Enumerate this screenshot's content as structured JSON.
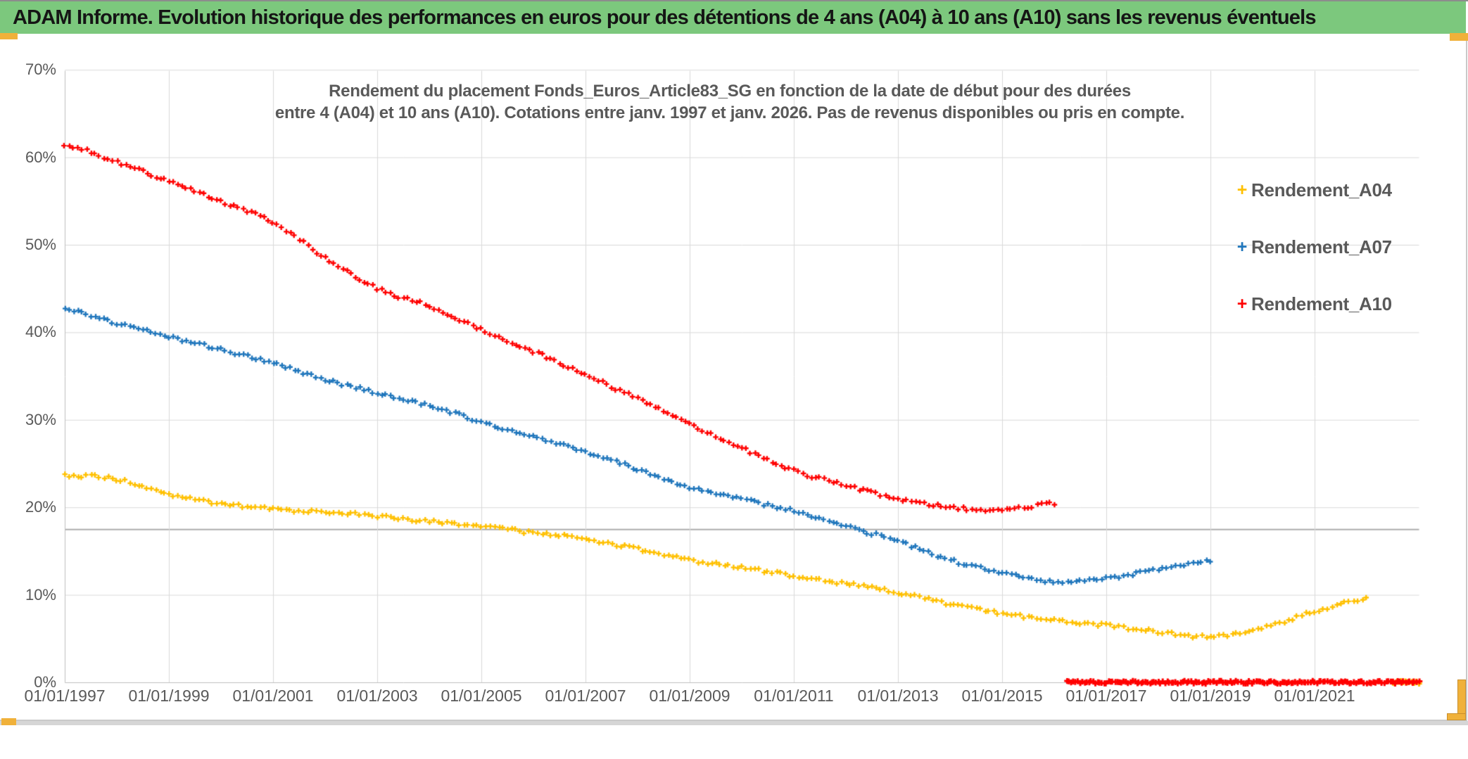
{
  "banner": {
    "title": "ADAM Informe. Evolution historique des performances en euros pour des détentions de 4 ans (A04) à 10 ans (A10) sans les revenus éventuels",
    "bg_color": "#7CC87D"
  },
  "chart": {
    "title_line1": "Rendement du placement Fonds_Euros_Article83_SG en fonction de la date de début pour des durées",
    "title_line2": "entre 4 (A04) et 10 ans (A10). Cotations entre janv. 1997 et janv. 2026. Pas de revenus disponibles ou pris en compte.",
    "text_color": "#595959",
    "gridline_color": "#D9D9D9",
    "axis_line_color": "#BFBFBF",
    "reference_line_color": "#ADADAD"
  },
  "chart_data": {
    "type": "scatter",
    "marker": "+",
    "title": "Rendement du placement Fonds_Euros_Article83_SG en fonction de la date de début pour des durées entre 4 (A04) et 10 ans (A10). Cotations entre janv. 1997 et janv. 2026. Pas de revenus disponibles ou pris en compte.",
    "xlabel": "",
    "ylabel": "",
    "grid": "both",
    "legend_position": "right",
    "x_range_years": [
      1997,
      2023
    ],
    "ylim_pct": [
      0,
      70
    ],
    "y_tick_pct": [
      70,
      60,
      50,
      40,
      30,
      20,
      10,
      0
    ],
    "y_tick_labels": [
      "70%",
      "60%",
      "50%",
      "40%",
      "30%",
      "20%",
      "10%",
      "0%"
    ],
    "x_tick_years": [
      1997,
      1999,
      2001,
      2003,
      2005,
      2007,
      2009,
      2011,
      2013,
      2015,
      2017,
      2019,
      2021
    ],
    "x_tick_labels": [
      "01/01/1997",
      "01/01/1999",
      "01/01/2001",
      "01/01/2003",
      "01/01/2005",
      "01/01/2007",
      "01/01/2009",
      "01/01/2011",
      "01/01/2013",
      "01/01/2015",
      "01/01/2017",
      "01/01/2019",
      "01/01/2021"
    ],
    "reference_line_pct": 17.5,
    "series": [
      {
        "name": "Rendement_A04",
        "color": "#FFC000",
        "points_year_pct": [
          [
            1997,
            23.7
          ],
          [
            1998,
            23.2
          ],
          [
            1999,
            21.5
          ],
          [
            2000,
            20.4
          ],
          [
            2001,
            19.8
          ],
          [
            2002,
            19.5
          ],
          [
            2003,
            19.0
          ],
          [
            2004,
            18.4
          ],
          [
            2005,
            17.8
          ],
          [
            2006,
            17.1
          ],
          [
            2007,
            16.4
          ],
          [
            2008,
            15.2
          ],
          [
            2009,
            14.0
          ],
          [
            2010,
            13.1
          ],
          [
            2011,
            12.2
          ],
          [
            2012,
            11.3
          ],
          [
            2013,
            10.3
          ],
          [
            2014,
            8.9
          ],
          [
            2015,
            7.9
          ],
          [
            2016,
            7.1
          ],
          [
            2017,
            6.5
          ],
          [
            2018,
            5.8
          ],
          [
            2019,
            5.2
          ],
          [
            2020,
            6.2
          ],
          [
            2021,
            8.1
          ],
          [
            2022.08,
            9.7
          ]
        ],
        "zero_tail_year_range": [
          2022.5,
          2023.0
        ]
      },
      {
        "name": "Rendement_A07",
        "color": "#1F76BC",
        "points_year_pct": [
          [
            1997,
            42.6
          ],
          [
            1998,
            41.0
          ],
          [
            1999,
            39.5
          ],
          [
            2000,
            38.0
          ],
          [
            2001,
            36.5
          ],
          [
            2002,
            34.6
          ],
          [
            2003,
            33.1
          ],
          [
            2004,
            31.6
          ],
          [
            2005,
            29.8
          ],
          [
            2006,
            28.1
          ],
          [
            2007,
            26.4
          ],
          [
            2008,
            24.4
          ],
          [
            2009,
            22.3
          ],
          [
            2010,
            20.9
          ],
          [
            2011,
            19.6
          ],
          [
            2012,
            17.9
          ],
          [
            2013,
            16.1
          ],
          [
            2014,
            14.0
          ],
          [
            2015,
            12.5
          ],
          [
            2016,
            11.5
          ],
          [
            2017,
            11.9
          ],
          [
            2018,
            12.9
          ],
          [
            2019.08,
            14.0
          ]
        ],
        "zero_tail_year_range": null
      },
      {
        "name": "Rendement_A10",
        "color": "#FF0000",
        "points_year_pct": [
          [
            1997,
            61.5
          ],
          [
            1998,
            59.4
          ],
          [
            1999,
            57.3
          ],
          [
            2000,
            55.0
          ],
          [
            2001,
            52.6
          ],
          [
            2002,
            48.5
          ],
          [
            2003,
            45.0
          ],
          [
            2004,
            43.0
          ],
          [
            2005,
            40.3
          ],
          [
            2006,
            37.8
          ],
          [
            2007,
            35.2
          ],
          [
            2008,
            32.4
          ],
          [
            2009,
            29.6
          ],
          [
            2010,
            26.8
          ],
          [
            2011,
            24.2
          ],
          [
            2012,
            22.5
          ],
          [
            2013,
            21.0
          ],
          [
            2014,
            20.0
          ],
          [
            2015,
            19.7
          ],
          [
            2016.08,
            20.5
          ]
        ],
        "zero_tail_year_range": [
          2016.25,
          2023.0
        ]
      }
    ]
  }
}
